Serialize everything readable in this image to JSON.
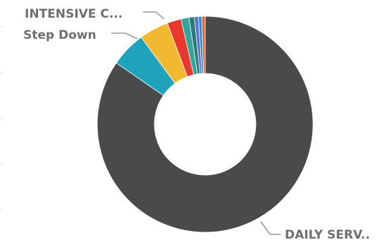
{
  "chart_data": {
    "type": "pie",
    "donut": true,
    "title": "",
    "legend": "none",
    "slices": [
      {
        "label": "DAILY SERV..",
        "value": 84.6,
        "color": "#4a4a4a"
      },
      {
        "label": "",
        "value": 5.3,
        "color": "#1fa3bd"
      },
      {
        "label": "Step Down",
        "value": 4.4,
        "color": "#f2b82f"
      },
      {
        "label": "INTENSIVE C...",
        "value": 2.1,
        "color": "#e8382e"
      },
      {
        "label": "",
        "value": 1.2,
        "color": "#2fa89a"
      },
      {
        "label": "",
        "value": 0.8,
        "color": "#2b7a78"
      },
      {
        "label": "",
        "value": 0.6,
        "color": "#5c6fd6"
      },
      {
        "label": "",
        "value": 0.5,
        "color": "#2a8fd6"
      },
      {
        "label": "",
        "value": 0.5,
        "color": "#e8622e"
      }
    ]
  }
}
